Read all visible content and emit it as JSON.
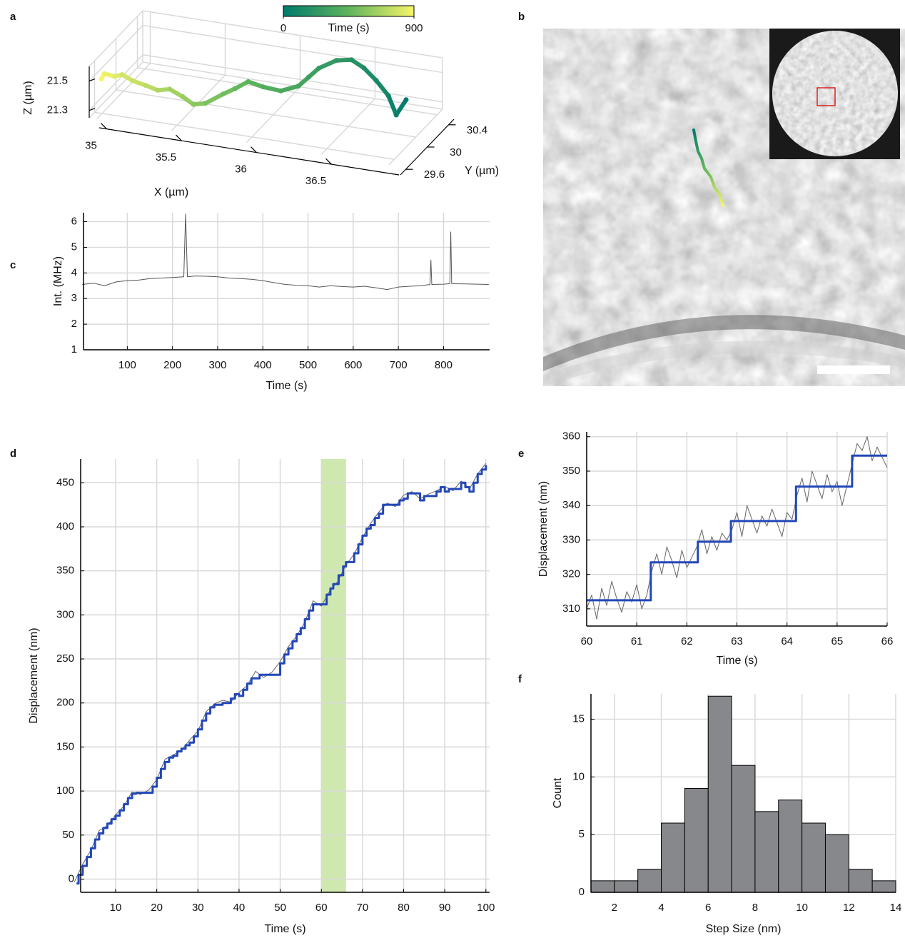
{
  "chart_data": [
    {
      "panel": "a",
      "type": "trajectory3d",
      "xlabel": "X (µm)",
      "ylabel": "Y (µm)",
      "zlabel": "Z (µm)",
      "xlim": [
        34.95,
        36.95
      ],
      "ylim": [
        29.5,
        30.5
      ],
      "zlim": [
        21.25,
        21.6
      ],
      "xticks": [
        35,
        35.5,
        36,
        36.5
      ],
      "yticks": [
        29.6,
        30,
        30.4
      ],
      "zticks": [
        21.3,
        21.5
      ],
      "grid": true,
      "colorbar": {
        "label": "Time (s)",
        "clim": [
          0,
          900
        ],
        "ticks": [
          0,
          900
        ],
        "colormap": [
          "#007a6c",
          "#5fb45c",
          "#f7f56a"
        ]
      },
      "x": [
        36.85,
        36.82,
        36.75,
        36.65,
        36.55,
        36.45,
        36.35,
        36.25,
        36.2,
        36.15,
        36.05,
        35.95,
        35.85,
        35.78,
        35.7,
        35.6,
        35.52,
        35.45,
        35.38,
        35.3,
        35.22,
        35.15,
        35.08,
        35.03,
        34.98,
        34.96
      ],
      "y": [
        30.1,
        30.0,
        30.05,
        30.1,
        30.15,
        30.2,
        30.2,
        30.15,
        30.1,
        30.05,
        30.0,
        29.95,
        29.95,
        29.9,
        29.9,
        29.85,
        29.85,
        29.85,
        29.8,
        29.8,
        29.8,
        29.75,
        29.75,
        29.75,
        29.7,
        29.7
      ],
      "z": [
        21.45,
        21.38,
        21.48,
        21.55,
        21.6,
        21.62,
        21.6,
        21.55,
        21.5,
        21.45,
        21.42,
        21.45,
        21.47,
        21.43,
        21.38,
        21.32,
        21.3,
        21.34,
        21.4,
        21.38,
        21.4,
        21.44,
        21.47,
        21.45,
        21.48,
        21.44
      ],
      "t": [
        0,
        36,
        72,
        108,
        144,
        180,
        216,
        252,
        288,
        324,
        360,
        396,
        432,
        468,
        504,
        540,
        576,
        612,
        648,
        684,
        720,
        756,
        792,
        828,
        864,
        900
      ]
    },
    {
      "panel": "b",
      "type": "image"
    },
    {
      "panel": "c",
      "type": "line",
      "xlabel": "Time (s)",
      "ylabel": "Int. (MHz)",
      "xlim": [
        3,
        902
      ],
      "ylim": [
        1,
        6.35
      ],
      "xticks": [
        100,
        200,
        300,
        400,
        500,
        600,
        700,
        800
      ],
      "yticks": [
        1,
        2,
        3,
        4,
        5,
        6
      ],
      "grid": true,
      "series": [
        {
          "color": "#555555",
          "x": [
            0,
            25,
            50,
            75,
            100,
            125,
            150,
            175,
            200,
            225,
            229,
            233,
            250,
            275,
            300,
            325,
            350,
            375,
            400,
            425,
            450,
            475,
            500,
            525,
            550,
            575,
            600,
            625,
            650,
            675,
            700,
            725,
            750,
            770,
            772,
            774,
            800,
            814,
            816,
            818,
            850,
            875,
            900
          ],
          "values": [
            3.55,
            3.6,
            3.5,
            3.65,
            3.7,
            3.72,
            3.78,
            3.8,
            3.82,
            3.85,
            6.3,
            3.85,
            3.88,
            3.87,
            3.85,
            3.8,
            3.78,
            3.75,
            3.7,
            3.62,
            3.55,
            3.52,
            3.5,
            3.45,
            3.5,
            3.47,
            3.45,
            3.48,
            3.42,
            3.35,
            3.45,
            3.48,
            3.5,
            3.55,
            4.5,
            3.55,
            3.56,
            3.58,
            5.6,
            3.58,
            3.57,
            3.56,
            3.55
          ]
        }
      ]
    },
    {
      "panel": "d",
      "type": "line",
      "xlabel": "Time (s)",
      "ylabel": "Displacement (nm)",
      "xlim": [
        1.5,
        100.9
      ],
      "ylim": [
        -15,
        477
      ],
      "xticks": [
        10,
        20,
        30,
        40,
        50,
        60,
        70,
        80,
        90,
        100
      ],
      "yticks": [
        0,
        50,
        100,
        150,
        200,
        250,
        300,
        350,
        400,
        450
      ],
      "grid": true,
      "span": [
        60,
        66
      ],
      "span_color": "#b9de8f",
      "series": [
        {
          "color": "#666666",
          "x": [
            0,
            2,
            4,
            6,
            8,
            10,
            12,
            14,
            16,
            18,
            20,
            22,
            24,
            26,
            28,
            30,
            32,
            34,
            36,
            38,
            40,
            42,
            44,
            46,
            48,
            50,
            52,
            54,
            56,
            58,
            60,
            62,
            64,
            66,
            68,
            70,
            72,
            74,
            76,
            78,
            80,
            82,
            84,
            86,
            88,
            90,
            92,
            94,
            96,
            98,
            100
          ],
          "values": [
            -3,
            17,
            33,
            55,
            61,
            73,
            83,
            99,
            96,
            101,
            113,
            136,
            141,
            146,
            158,
            168,
            190,
            199,
            203,
            201,
            212,
            220,
            236,
            229,
            235,
            247,
            264,
            276,
            292,
            316,
            310,
            327,
            338,
            357,
            369,
            388,
            404,
            417,
            427,
            423,
            436,
            440,
            432,
            437,
            441,
            446,
            441,
            452,
            443,
            460,
            472
          ]
        },
        {
          "color": "#2347b8",
          "step": true,
          "x": [
            0.5,
            1,
            2,
            3,
            4,
            5,
            6,
            7,
            8,
            9,
            10,
            11,
            12,
            13,
            14,
            15,
            19,
            20,
            21,
            22,
            23,
            24,
            25,
            26,
            27,
            28,
            29,
            30,
            31,
            32,
            33,
            34,
            36,
            38,
            39,
            40,
            41,
            42,
            43,
            45,
            50,
            51,
            52,
            53,
            54,
            55,
            56,
            57,
            58,
            61.3,
            62.2,
            62.9,
            64.2,
            65.3,
            66,
            68,
            69,
            70,
            71,
            72,
            73,
            74,
            75,
            79,
            80,
            81,
            84,
            85,
            88,
            89,
            90,
            91,
            94,
            95,
            96,
            97,
            98,
            99,
            100
          ],
          "values": [
            -5,
            5,
            15,
            25,
            35,
            45,
            52,
            58,
            63,
            68,
            72,
            78,
            85,
            92,
            97,
            98,
            105,
            115,
            125,
            133,
            138,
            140,
            145,
            148,
            152,
            155,
            162,
            170,
            180,
            188,
            195,
            198,
            200,
            205,
            210,
            208,
            215,
            222,
            228,
            232,
            245,
            255,
            262,
            270,
            278,
            285,
            295,
            305,
            312,
            323,
            330,
            335,
            345,
            355,
            360,
            370,
            380,
            390,
            398,
            402,
            410,
            415,
            425,
            430,
            432,
            438,
            430,
            435,
            440,
            445,
            440,
            443,
            450,
            445,
            440,
            450,
            460,
            465,
            470
          ]
        }
      ]
    },
    {
      "panel": "e",
      "type": "line",
      "xlabel": "Time (s)",
      "ylabel": "Displacement (nm)",
      "xlim": [
        60,
        66
      ],
      "ylim": [
        305,
        361.4
      ],
      "xticks": [
        60,
        61,
        62,
        63,
        64,
        65,
        66
      ],
      "yticks": [
        310,
        320,
        330,
        340,
        350,
        360
      ],
      "grid": true,
      "series": [
        {
          "color": "#666666",
          "x": [
            60.0,
            60.1,
            60.2,
            60.3,
            60.4,
            60.5,
            60.6,
            60.7,
            60.8,
            60.9,
            61.0,
            61.1,
            61.2,
            61.3,
            61.4,
            61.5,
            61.6,
            61.7,
            61.8,
            61.9,
            62.0,
            62.1,
            62.2,
            62.3,
            62.4,
            62.5,
            62.6,
            62.7,
            62.8,
            62.9,
            63.0,
            63.1,
            63.2,
            63.3,
            63.4,
            63.5,
            63.6,
            63.7,
            63.8,
            63.9,
            64.0,
            64.1,
            64.2,
            64.3,
            64.4,
            64.5,
            64.6,
            64.7,
            64.8,
            64.9,
            65.0,
            65.1,
            65.2,
            65.3,
            65.4,
            65.5,
            65.6,
            65.7,
            65.8,
            65.9,
            66.0
          ],
          "values": [
            310,
            314,
            307,
            316,
            311,
            318,
            313,
            309,
            315,
            312,
            317,
            310,
            314,
            321,
            326,
            320,
            328,
            324,
            319,
            327,
            322,
            325,
            328,
            333,
            326,
            331,
            327,
            332,
            330,
            333,
            338,
            331,
            340,
            336,
            332,
            337,
            334,
            339,
            335,
            331,
            338,
            336,
            343,
            348,
            341,
            350,
            346,
            342,
            349,
            344,
            347,
            340,
            346,
            352,
            358,
            356,
            360,
            353,
            357,
            354,
            351
          ]
        },
        {
          "color": "#2347b8",
          "step": true,
          "x": [
            60,
            61.28,
            62.22,
            62.88,
            64.18,
            65.3,
            66
          ],
          "values": [
            312.5,
            323.5,
            329.5,
            335.5,
            345.5,
            354.5,
            354.5
          ]
        }
      ]
    },
    {
      "panel": "f",
      "type": "histogram",
      "xlabel": "Step Size (nm)",
      "ylabel": "Count",
      "xlim": [
        1,
        14
      ],
      "ylim": [
        0,
        17.2
      ],
      "xticks": [
        2,
        4,
        6,
        8,
        10,
        12,
        14
      ],
      "yticks": [
        0,
        5,
        10,
        15
      ],
      "grid": true,
      "color": "#87888b",
      "bins": [
        1,
        2,
        3,
        4,
        5,
        6,
        7,
        8,
        9,
        10,
        11,
        12,
        13,
        14
      ],
      "counts": [
        1,
        1,
        2,
        6,
        9,
        17,
        11,
        7,
        8,
        6,
        5,
        2,
        1
      ]
    }
  ]
}
